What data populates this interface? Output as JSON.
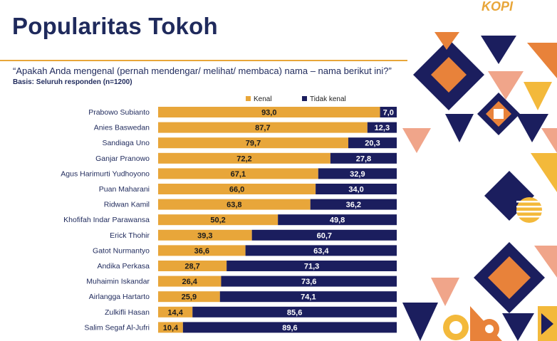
{
  "header": {
    "title": "Popularitas Tokoh",
    "question": "“Apakah Anda mengenal (pernah mendengar/ melihat/ membaca) nama – nama berikut ini?”",
    "basis": "Basis: Seluruh responden (n=1200)",
    "logo_text": "KOPI"
  },
  "colors": {
    "kenal": "#e8a63a",
    "tidak_kenal": "#1b1e5e",
    "title": "#1f2a5c",
    "deco_orange": "#e8823a",
    "deco_navy": "#1b1e5e",
    "deco_yellow": "#f3b93b",
    "deco_salmon": "#f0a58a"
  },
  "chart_data": {
    "type": "bar",
    "orientation": "horizontal",
    "stacked": true,
    "xlim": [
      0,
      100
    ],
    "legend_position": "top",
    "grid": false,
    "categories": [
      "Prabowo Subianto",
      "Anies Baswedan",
      "Sandiaga Uno",
      "Ganjar Pranowo",
      "Agus Harimurti Yudhoyono",
      "Puan Maharani",
      "Ridwan Kamil",
      "Khofifah Indar Parawansa",
      "Erick Thohir",
      "Gatot Nurmantyo",
      "Andika Perkasa",
      "Muhaimin Iskandar",
      "Airlangga Hartarto",
      "Zulkifli Hasan",
      "Salim Segaf Al-Jufri"
    ],
    "series": [
      {
        "name": "Kenal",
        "values": [
          93.0,
          87.7,
          79.7,
          72.2,
          67.1,
          66.0,
          63.8,
          50.2,
          39.3,
          36.6,
          28.7,
          26.4,
          25.9,
          14.4,
          10.4
        ],
        "labels": [
          "93,0",
          "87,7",
          "79,7",
          "72,2",
          "67,1",
          "66,0",
          "63,8",
          "50,2",
          "39,3",
          "36,6",
          "28,7",
          "26,4",
          "25,9",
          "14,4",
          "10,4"
        ]
      },
      {
        "name": "Tidak kenal",
        "values": [
          7.0,
          12.3,
          20.3,
          27.8,
          32.9,
          34.0,
          36.2,
          49.8,
          60.7,
          63.4,
          71.3,
          73.6,
          74.1,
          85.6,
          89.6
        ],
        "labels": [
          "7,0",
          "12,3",
          "20,3",
          "27,8",
          "32,9",
          "34,0",
          "36,2",
          "49,8",
          "60,7",
          "63,4",
          "71,3",
          "73,6",
          "74,1",
          "85,6",
          "89,6"
        ]
      }
    ]
  }
}
